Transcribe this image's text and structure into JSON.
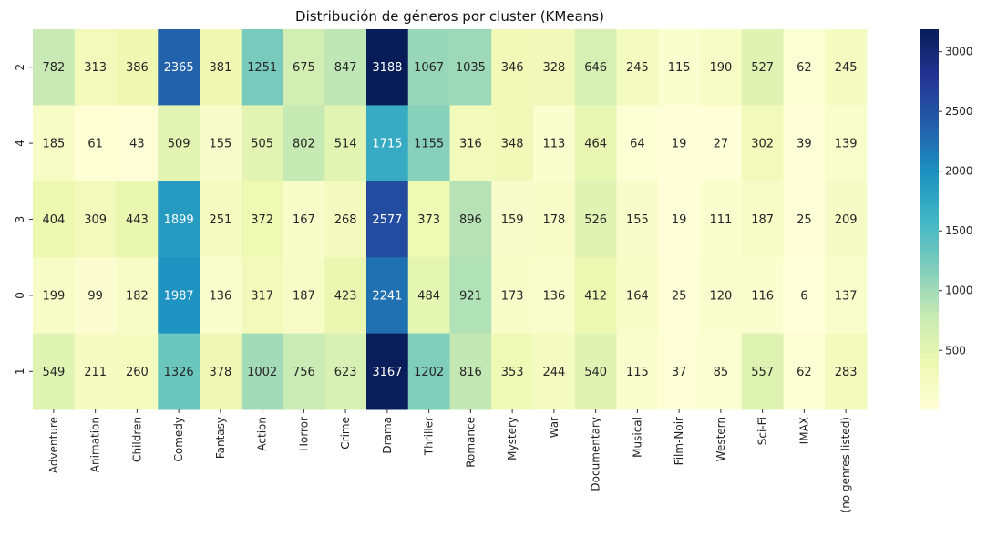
{
  "chart_data": {
    "type": "heatmap",
    "title": "Distribución de géneros por cluster (KMeans)",
    "xlabel": "",
    "ylabel": "",
    "categories": [
      "Adventure",
      "Animation",
      "Children",
      "Comedy",
      "Fantasy",
      "Action",
      "Horror",
      "Crime",
      "Drama",
      "Thriller",
      "Romance",
      "Mystery",
      "War",
      "Documentary",
      "Musical",
      "Film-Noir",
      "Western",
      "Sci-Fi",
      "IMAX",
      "(no genres listed)"
    ],
    "rows": [
      "2",
      "4",
      "3",
      "0",
      "1"
    ],
    "values": [
      [
        782,
        313,
        386,
        2365,
        381,
        1251,
        675,
        847,
        3188,
        1067,
        1035,
        346,
        328,
        646,
        245,
        115,
        190,
        527,
        62,
        245
      ],
      [
        185,
        61,
        43,
        509,
        155,
        505,
        802,
        514,
        1715,
        1155,
        316,
        348,
        113,
        464,
        64,
        19,
        27,
        302,
        39,
        139
      ],
      [
        404,
        309,
        443,
        1899,
        251,
        372,
        167,
        268,
        2577,
        373,
        896,
        159,
        178,
        526,
        155,
        19,
        111,
        187,
        25,
        209
      ],
      [
        199,
        99,
        182,
        1987,
        136,
        317,
        187,
        423,
        2241,
        484,
        921,
        173,
        136,
        412,
        164,
        25,
        120,
        116,
        6,
        137
      ],
      [
        549,
        211,
        260,
        1326,
        378,
        1002,
        756,
        623,
        3167,
        1202,
        816,
        353,
        244,
        540,
        115,
        37,
        85,
        557,
        62,
        283
      ]
    ],
    "colormap": "YlGnBu",
    "vmin": 6,
    "vmax": 3188,
    "colorbar_ticks": [
      500,
      1000,
      1500,
      2000,
      2500,
      3000
    ],
    "grid": false,
    "annotations": true
  }
}
